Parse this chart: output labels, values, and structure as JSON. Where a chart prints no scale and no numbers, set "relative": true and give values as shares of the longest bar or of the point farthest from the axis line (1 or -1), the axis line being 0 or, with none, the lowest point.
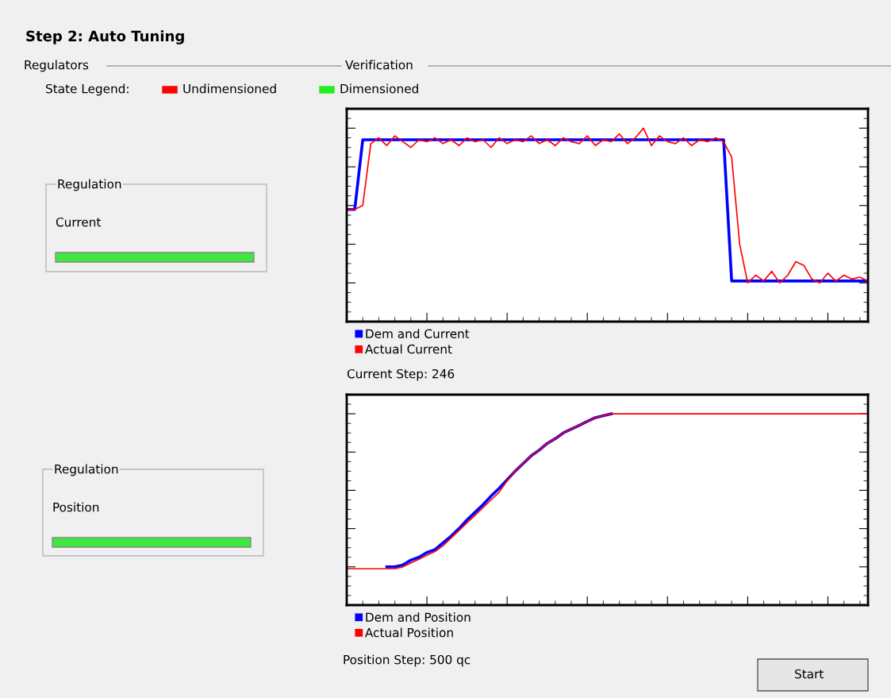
{
  "chart_data": [
    {
      "type": "other",
      "title": "Step 2: Auto Tuning",
      "annotations": [
        "Regulators",
        "Verification",
        "State Legend:",
        "Undimensioned",
        "Dimensioned",
        "Regulation",
        "Current",
        "Regulation",
        "Position",
        "Start"
      ]
    },
    {
      "type": "line",
      "relative": true,
      "tick_labels": false,
      "legend": "bottom",
      "marker": "none",
      "annotations": [
        "Current Step: 246"
      ],
      "categories": [
        null,
        null,
        null,
        null,
        null,
        null,
        null,
        null,
        null,
        null,
        null,
        null,
        null,
        null,
        null,
        null,
        null,
        null,
        null,
        null,
        null,
        null,
        null,
        null,
        null,
        null,
        null,
        null,
        null,
        null,
        null,
        null,
        null,
        null,
        null,
        null,
        null,
        null,
        null,
        null,
        null,
        null,
        null,
        null,
        null,
        null,
        null,
        null,
        null,
        null,
        null,
        null,
        null,
        null,
        null,
        null,
        null,
        null,
        null,
        null,
        null,
        null,
        null,
        null,
        null,
        null
      ],
      "series": [
        {
          "name": "Dem and Current",
          "color": "#0000ff",
          "values": [
            0.58,
            0.58,
            0.94,
            0.94,
            0.94,
            0.94,
            0.94,
            0.94,
            0.94,
            0.94,
            0.94,
            0.94,
            0.94,
            0.94,
            0.94,
            0.94,
            0.94,
            0.94,
            0.94,
            0.94,
            0.94,
            0.94,
            0.94,
            0.94,
            0.94,
            0.94,
            0.94,
            0.94,
            0.94,
            0.94,
            0.94,
            0.94,
            0.94,
            0.94,
            0.94,
            0.94,
            0.94,
            0.94,
            0.94,
            0.94,
            0.94,
            0.94,
            0.94,
            0.94,
            0.94,
            0.94,
            0.94,
            0.94,
            0.21,
            0.21,
            0.21,
            0.21,
            0.21,
            0.21,
            0.21,
            0.21,
            0.21,
            0.21,
            0.21,
            0.21,
            0.21,
            0.21,
            0.21,
            0.21,
            0.21,
            0.21
          ]
        },
        {
          "name": "Actual Current",
          "color": "#ff0000",
          "values": [
            0.58,
            0.58,
            0.6,
            0.92,
            0.95,
            0.91,
            0.96,
            0.93,
            0.9,
            0.94,
            0.93,
            0.95,
            0.92,
            0.94,
            0.91,
            0.95,
            0.93,
            0.94,
            0.9,
            0.95,
            0.92,
            0.94,
            0.93,
            0.96,
            0.92,
            0.94,
            0.91,
            0.95,
            0.93,
            0.92,
            0.96,
            0.91,
            0.94,
            0.93,
            0.97,
            0.92,
            0.95,
            1.0,
            0.91,
            0.96,
            0.93,
            0.92,
            0.95,
            0.91,
            0.94,
            0.93,
            0.95,
            0.93,
            0.85,
            0.4,
            0.2,
            0.24,
            0.21,
            0.26,
            0.2,
            0.24,
            0.31,
            0.29,
            0.22,
            0.2,
            0.25,
            0.21,
            0.24,
            0.22,
            0.23,
            0.21
          ]
        }
      ]
    },
    {
      "type": "line",
      "relative": true,
      "tick_labels": false,
      "legend": "bottom",
      "marker": "none",
      "annotations": [
        "Position Step: 500 qc"
      ],
      "categories": [
        null,
        null,
        null,
        null,
        null,
        null,
        null,
        null,
        null,
        null,
        null,
        null,
        null,
        null,
        null,
        null,
        null,
        null,
        null,
        null,
        null,
        null,
        null,
        null,
        null,
        null,
        null,
        null,
        null,
        null,
        null,
        null,
        null,
        null,
        null,
        null,
        null,
        null,
        null,
        null,
        null,
        null,
        null,
        null,
        null,
        null,
        null,
        null,
        null,
        null,
        null,
        null,
        null,
        null,
        null,
        null,
        null,
        null,
        null,
        null,
        null,
        null,
        null,
        null,
        null,
        null
      ],
      "series": [
        {
          "name": "Dem and Position",
          "color": "#0000ff",
          "values": [
            null,
            null,
            null,
            null,
            null,
            0.2,
            0.2,
            0.21,
            0.235,
            0.25,
            0.275,
            0.29,
            0.325,
            0.36,
            0.4,
            0.445,
            0.485,
            0.525,
            0.57,
            0.61,
            0.655,
            0.7,
            0.74,
            0.78,
            0.81,
            0.845,
            0.87,
            0.9,
            0.92,
            0.94,
            0.96,
            0.98,
            0.99,
            1.0,
            null,
            null,
            null,
            null,
            null,
            null,
            null,
            null,
            null,
            null,
            null,
            null,
            null,
            null,
            null,
            null,
            null,
            null,
            null,
            null,
            null,
            null,
            null,
            null,
            null,
            null,
            null,
            null,
            null,
            null,
            null,
            null
          ]
        },
        {
          "name": "Actual Position",
          "color": "#ff0000",
          "values": [
            0.19,
            0.19,
            0.19,
            0.19,
            0.19,
            0.19,
            0.19,
            0.2,
            0.22,
            0.24,
            0.26,
            0.28,
            0.31,
            0.35,
            0.39,
            0.43,
            0.47,
            0.51,
            0.55,
            0.59,
            0.65,
            0.7,
            0.74,
            0.78,
            0.81,
            0.845,
            0.87,
            0.9,
            0.92,
            0.94,
            0.96,
            0.98,
            0.99,
            1.0,
            1.0,
            1.0,
            1.0,
            1.0,
            1.0,
            1.0,
            1.0,
            1.0,
            1.0,
            1.0,
            1.0,
            1.0,
            1.0,
            1.0,
            1.0,
            1.0,
            1.0,
            1.0,
            1.0,
            1.0,
            1.0,
            1.0,
            1.0,
            1.0,
            1.0,
            1.0,
            1.0,
            1.0,
            1.0,
            1.0,
            1.0,
            1.0
          ]
        }
      ]
    }
  ]
}
